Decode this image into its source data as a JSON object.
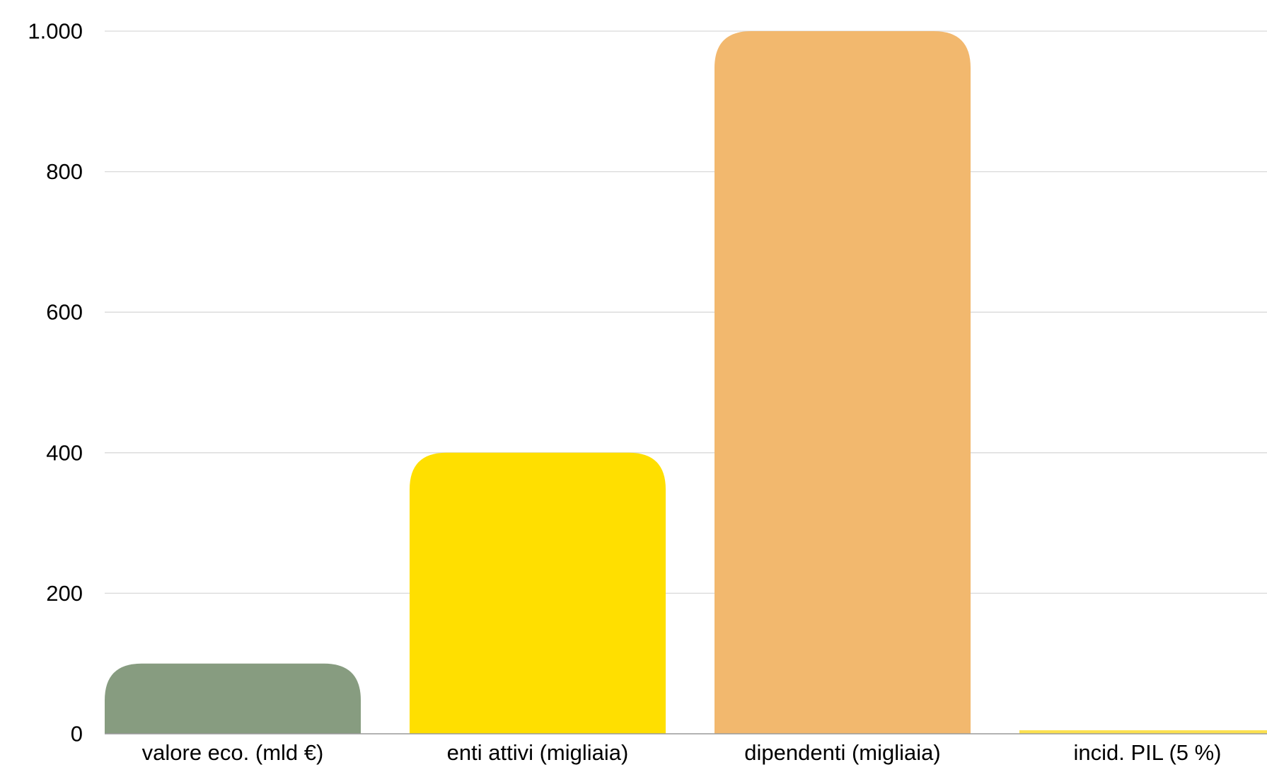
{
  "chart_data": {
    "type": "bar",
    "categories": [
      "valore eco. (mld €)",
      "enti attivi (migliaia)",
      "dipendenti (migliaia)",
      "incid. PIL (5 %)"
    ],
    "values": [
      100,
      400,
      1000,
      5
    ],
    "colors": [
      "#879C80",
      "#FFDF00",
      "#F2B86E",
      "#FCE150"
    ],
    "ylim": [
      0,
      1000
    ],
    "yticks": [
      0,
      200,
      400,
      600,
      800,
      1000
    ],
    "ytick_labels": [
      "0",
      "200",
      "400",
      "600",
      "800",
      "1.000"
    ],
    "grid": true,
    "title": "",
    "xlabel": "",
    "ylabel": "",
    "legend": "none"
  }
}
